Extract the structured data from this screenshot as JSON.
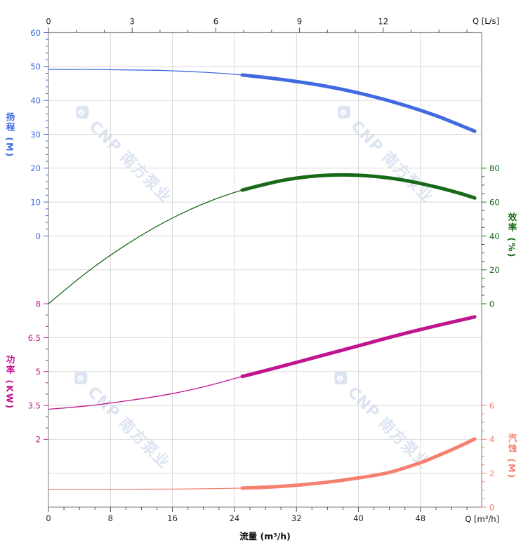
{
  "watermark": {
    "text": "CNP 南方泵业",
    "logo_letter": "e",
    "color": "#dce4f2"
  },
  "chart_data": {
    "type": "line",
    "title": "",
    "legend": "none",
    "grid": {
      "on": true,
      "color": "#d9d9d9",
      "border_color": "#8f8f8f",
      "rows": 14,
      "v_step_m3h": 8
    },
    "x_bottom": {
      "axis_title": "流量 (m³/h)",
      "corner_label": "Q [m³/h]",
      "ticks": [
        0,
        8,
        16,
        24,
        32,
        40,
        48
      ],
      "minor_step": 2,
      "max": 55.9,
      "color": "#222222"
    },
    "x_top": {
      "corner_label": "Q [L/s]",
      "ticks": [
        0,
        3,
        6,
        9,
        12
      ],
      "minor_step": 1,
      "max": 15.53,
      "color": "#222222"
    },
    "series": [
      {
        "id": "head",
        "axis_title": "扬程 (M)",
        "side": "left",
        "color": "#4169e1",
        "row_start": 0,
        "tick_top": 60,
        "value_per_row": 10,
        "ticks": [
          60,
          50,
          40,
          30,
          20,
          10,
          0
        ],
        "minor_step": 2,
        "thick_from": 25,
        "points": [
          [
            0,
            49.2
          ],
          [
            5,
            49.15
          ],
          [
            10,
            49.0
          ],
          [
            15,
            48.8
          ],
          [
            20,
            48.3
          ],
          [
            25,
            47.5
          ],
          [
            30,
            46.2
          ],
          [
            35,
            44.5
          ],
          [
            40,
            42.2
          ],
          [
            45,
            39.2
          ],
          [
            50,
            35.5
          ],
          [
            55,
            30.9
          ]
        ]
      },
      {
        "id": "efficiency",
        "axis_title": "效率 (%)",
        "side": "right",
        "color": "#186a18",
        "row_start": 4,
        "tick_top": 80,
        "value_per_row": 20,
        "ticks": [
          80,
          60,
          40,
          20,
          0
        ],
        "minor_step": 5,
        "thick_from": 25,
        "points": [
          [
            0,
            0
          ],
          [
            5,
            18.7
          ],
          [
            10,
            34.7
          ],
          [
            15,
            48.2
          ],
          [
            20,
            59
          ],
          [
            25,
            67.1
          ],
          [
            30,
            72.6
          ],
          [
            34,
            75.2
          ],
          [
            38,
            76
          ],
          [
            42,
            75.2
          ],
          [
            46,
            72.8
          ],
          [
            50,
            68.9
          ],
          [
            53,
            65.3
          ],
          [
            55,
            62.4
          ]
        ]
      },
      {
        "id": "power",
        "axis_title": "功率 (KW)",
        "side": "left",
        "color": "#c01590",
        "row_start": 8,
        "tick_top": 8,
        "value_per_row": 1.5,
        "ticks": [
          8,
          6.5,
          5,
          3.5,
          2
        ],
        "minor_step": 0.5,
        "thick_from": 25,
        "points": [
          [
            0,
            3.33
          ],
          [
            5,
            3.48
          ],
          [
            10,
            3.7
          ],
          [
            15,
            3.96
          ],
          [
            20,
            4.32
          ],
          [
            25,
            4.78
          ],
          [
            30,
            5.22
          ],
          [
            35,
            5.68
          ],
          [
            40,
            6.14
          ],
          [
            45,
            6.6
          ],
          [
            50,
            7.02
          ],
          [
            55,
            7.42
          ]
        ]
      },
      {
        "id": "npsh",
        "axis_title": "汽蚀 (M)",
        "side": "right",
        "color": "#f48170",
        "row_start": 11,
        "tick_top": 6,
        "value_per_row": 2,
        "ticks": [
          6,
          4,
          2,
          0
        ],
        "minor_step": 0.5,
        "thick_from": 25,
        "points": [
          [
            0,
            1.05
          ],
          [
            5,
            1.05
          ],
          [
            10,
            1.05
          ],
          [
            15,
            1.06
          ],
          [
            20,
            1.08
          ],
          [
            25,
            1.12
          ],
          [
            30,
            1.22
          ],
          [
            35,
            1.42
          ],
          [
            40,
            1.72
          ],
          [
            44,
            2.05
          ],
          [
            48,
            2.62
          ],
          [
            51,
            3.18
          ],
          [
            53,
            3.58
          ],
          [
            55,
            4.02
          ]
        ]
      }
    ]
  }
}
